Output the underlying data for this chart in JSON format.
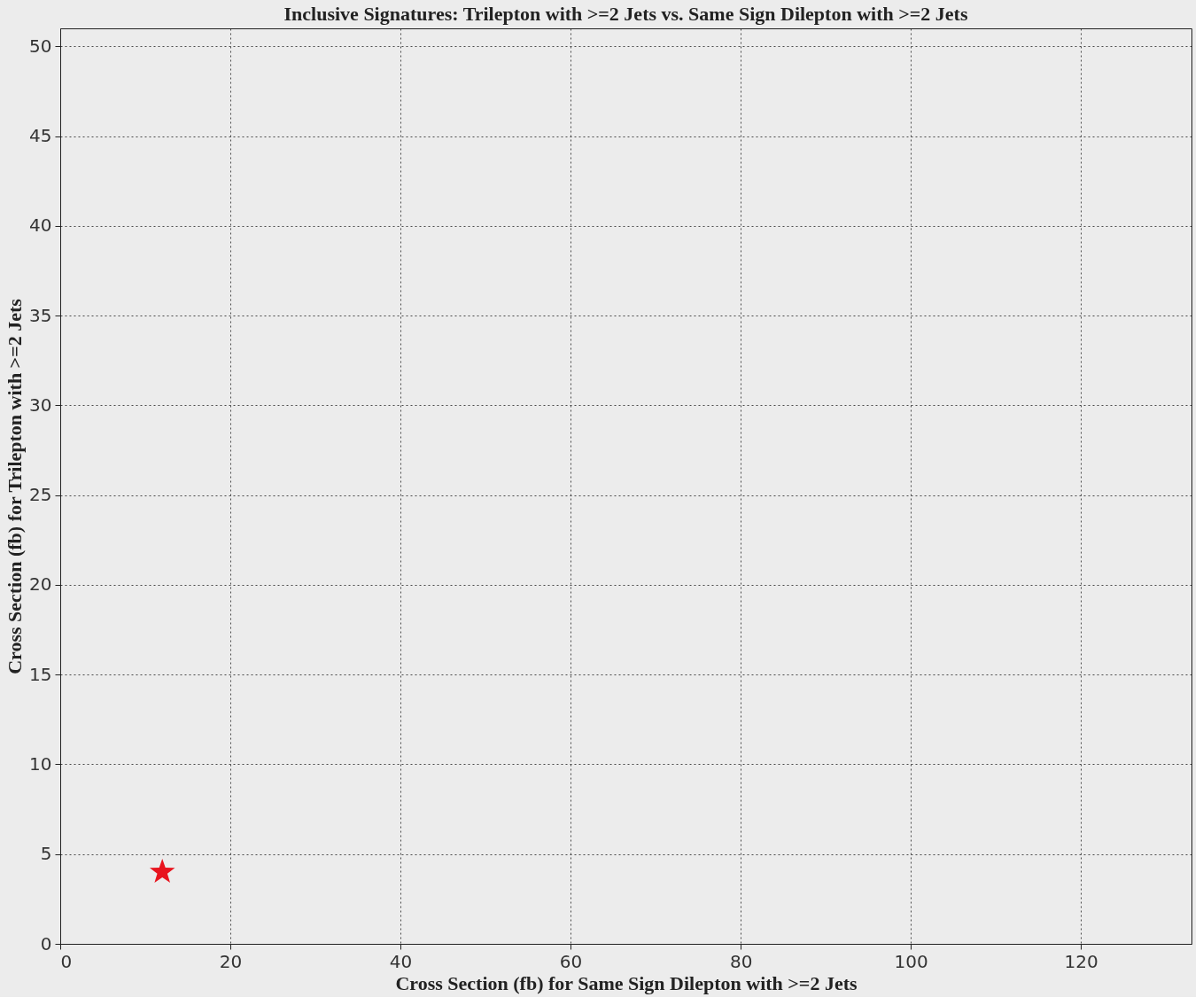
{
  "chart_data": {
    "type": "scatter",
    "title": "Inclusive Signatures: Trilepton with >=2 Jets vs. Same Sign Dilepton with >=2 Jets",
    "xlabel": "Cross Section (fb) for Same Sign Dilepton with >=2 Jets",
    "ylabel": "Cross Section (fb) for Trilepton with >=2 Jets",
    "x": [
      12
    ],
    "series": [
      {
        "color": "#e8141e",
        "values": [
          4
        ]
      }
    ],
    "xlim": [
      0,
      133
    ],
    "xticks": [
      0,
      20,
      40,
      60,
      80,
      100,
      120
    ],
    "ylim": [
      0,
      51
    ],
    "yticks": [
      0,
      5,
      10,
      15,
      20,
      25,
      30,
      35,
      40,
      45,
      50
    ],
    "grid": true,
    "line_style": "dotted",
    "marker": "star"
  }
}
